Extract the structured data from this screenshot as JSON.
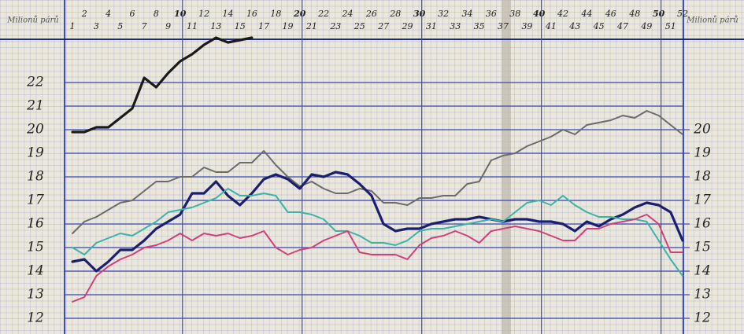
{
  "chart_data": {
    "type": "line",
    "y_label": "Milionů párů",
    "y2_label": "Milionů párů",
    "x": [
      1,
      2,
      3,
      4,
      5,
      6,
      7,
      8,
      9,
      10,
      11,
      12,
      13,
      14,
      15,
      16,
      17,
      18,
      19,
      20,
      21,
      22,
      23,
      24,
      25,
      26,
      27,
      28,
      29,
      30,
      31,
      32,
      33,
      34,
      35,
      36,
      37,
      38,
      39,
      40,
      41,
      42,
      43,
      44,
      45,
      46,
      47,
      48,
      49,
      50,
      51,
      52
    ],
    "xlim": [
      1,
      52
    ],
    "xticks": [
      1,
      2,
      3,
      4,
      5,
      6,
      7,
      8,
      9,
      10,
      11,
      12,
      13,
      14,
      15,
      16,
      17,
      18,
      19,
      20,
      21,
      22,
      23,
      24,
      25,
      26,
      27,
      28,
      29,
      30,
      31,
      32,
      33,
      34,
      35,
      36,
      37,
      38,
      39,
      40,
      41,
      42,
      43,
      44,
      45,
      46,
      47,
      48,
      49,
      50,
      51,
      52
    ],
    "ylim": [
      11.5,
      24
    ],
    "yticks": [
      12,
      13,
      14,
      15,
      16,
      17,
      18,
      19,
      20,
      21,
      22
    ],
    "y2lim": [
      11.5,
      24
    ],
    "y2ticks": [
      12,
      13,
      14,
      15,
      16,
      17,
      18,
      19,
      20
    ],
    "grid": true,
    "series": [
      {
        "color": "#1a1a1a",
        "values": [
          19.9,
          19.9,
          20.1,
          20.1,
          20.5,
          20.9,
          22.2,
          21.8,
          22.4,
          22.9,
          23.2,
          23.6,
          23.9,
          23.7,
          23.8,
          23.9,
          null,
          null,
          null,
          null,
          null,
          null,
          null,
          null,
          null,
          null,
          null,
          null,
          null,
          null,
          null,
          null,
          null,
          null,
          null,
          null,
          null,
          null,
          null,
          null,
          null,
          null,
          null,
          null,
          null,
          null,
          null,
          null,
          null,
          null,
          null,
          null
        ]
      },
      {
        "color": "#6b6b6b",
        "values": [
          15.6,
          16.1,
          16.3,
          16.6,
          16.9,
          17.0,
          17.4,
          17.8,
          17.8,
          18.0,
          18.0,
          18.4,
          18.2,
          18.2,
          18.6,
          18.6,
          19.1,
          18.5,
          18.0,
          17.6,
          17.8,
          17.5,
          17.3,
          17.3,
          17.5,
          17.4,
          16.9,
          16.9,
          16.8,
          17.1,
          17.1,
          17.2,
          17.2,
          17.7,
          17.8,
          18.7,
          18.9,
          19.0,
          19.3,
          19.5,
          19.7,
          20.0,
          19.8,
          20.2,
          20.3,
          20.4,
          20.6,
          20.5,
          20.8,
          20.6,
          20.2,
          19.8
        ]
      },
      {
        "color": "#1c1f6e",
        "values": [
          14.4,
          14.5,
          14.0,
          14.4,
          14.9,
          14.9,
          15.3,
          15.8,
          16.1,
          16.4,
          17.3,
          17.3,
          17.8,
          17.2,
          16.8,
          17.3,
          17.9,
          18.1,
          17.9,
          17.5,
          18.1,
          18.0,
          18.2,
          18.1,
          17.7,
          17.2,
          16.0,
          15.7,
          15.8,
          15.8,
          16.0,
          16.1,
          16.2,
          16.2,
          16.3,
          16.2,
          16.1,
          16.2,
          16.2,
          16.1,
          16.1,
          16.0,
          15.7,
          16.1,
          15.9,
          16.2,
          16.4,
          16.7,
          16.9,
          16.8,
          16.5,
          15.3
        ]
      },
      {
        "color": "#3bb3a8",
        "values": [
          15.0,
          14.7,
          15.2,
          15.4,
          15.6,
          15.5,
          15.8,
          16.1,
          16.5,
          16.6,
          16.7,
          16.9,
          17.1,
          17.5,
          17.2,
          17.2,
          17.3,
          17.2,
          16.5,
          16.5,
          16.4,
          16.2,
          15.7,
          15.7,
          15.5,
          15.2,
          15.2,
          15.1,
          15.3,
          15.7,
          15.8,
          15.8,
          15.9,
          16.0,
          16.1,
          16.2,
          16.1,
          16.5,
          16.9,
          17.0,
          16.8,
          17.2,
          16.8,
          16.5,
          16.3,
          16.3,
          16.2,
          16.2,
          16.1,
          15.3,
          14.5,
          13.8
        ]
      },
      {
        "color": "#d0407a",
        "values": [
          12.7,
          12.9,
          13.8,
          14.2,
          14.5,
          14.7,
          15.0,
          15.1,
          15.3,
          15.6,
          15.3,
          15.6,
          15.5,
          15.6,
          15.4,
          15.5,
          15.7,
          15.0,
          14.7,
          14.9,
          15.0,
          15.3,
          15.5,
          15.7,
          14.8,
          14.7,
          14.7,
          14.7,
          14.5,
          15.1,
          15.4,
          15.5,
          15.7,
          15.5,
          15.2,
          15.7,
          15.8,
          15.9,
          15.8,
          15.7,
          15.5,
          15.3,
          15.3,
          15.8,
          15.8,
          16.0,
          16.1,
          16.2,
          16.4,
          16.0,
          14.8,
          14.8
        ]
      }
    ]
  }
}
